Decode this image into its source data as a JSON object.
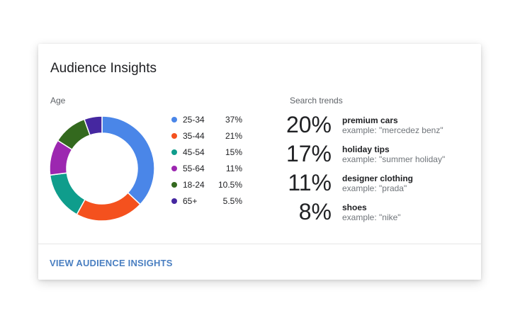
{
  "card": {
    "title": "Audience Insights",
    "footer_link": "VIEW AUDIENCE INSIGHTS"
  },
  "age": {
    "label": "Age",
    "segments": [
      {
        "range": "25-34",
        "pct_label": "37%",
        "value": 37,
        "color": "#4a86e8"
      },
      {
        "range": "35-44",
        "pct_label": "21%",
        "value": 21,
        "color": "#f4511e"
      },
      {
        "range": "45-54",
        "pct_label": "15%",
        "value": 15,
        "color": "#0f9d8c"
      },
      {
        "range": "55-64",
        "pct_label": "11%",
        "value": 11,
        "color": "#9c27b0"
      },
      {
        "range": "18-24",
        "pct_label": "10.5%",
        "value": 10.5,
        "color": "#33691e"
      },
      {
        "range": "65+",
        "pct_label": "5.5%",
        "value": 5.5,
        "color": "#4527a0"
      }
    ]
  },
  "search_trends": {
    "label": "Search trends",
    "items": [
      {
        "pct": "20%",
        "term": "premium cars",
        "example": "example: \"mercedez benz\""
      },
      {
        "pct": "17%",
        "term": "holiday tips",
        "example": "example: \"summer holiday\""
      },
      {
        "pct": "11%",
        "term": "designer clothing",
        "example": "example: \"prada\""
      },
      {
        "pct": "8%",
        "term": "shoes",
        "example": "example: \"nike\""
      }
    ]
  }
}
